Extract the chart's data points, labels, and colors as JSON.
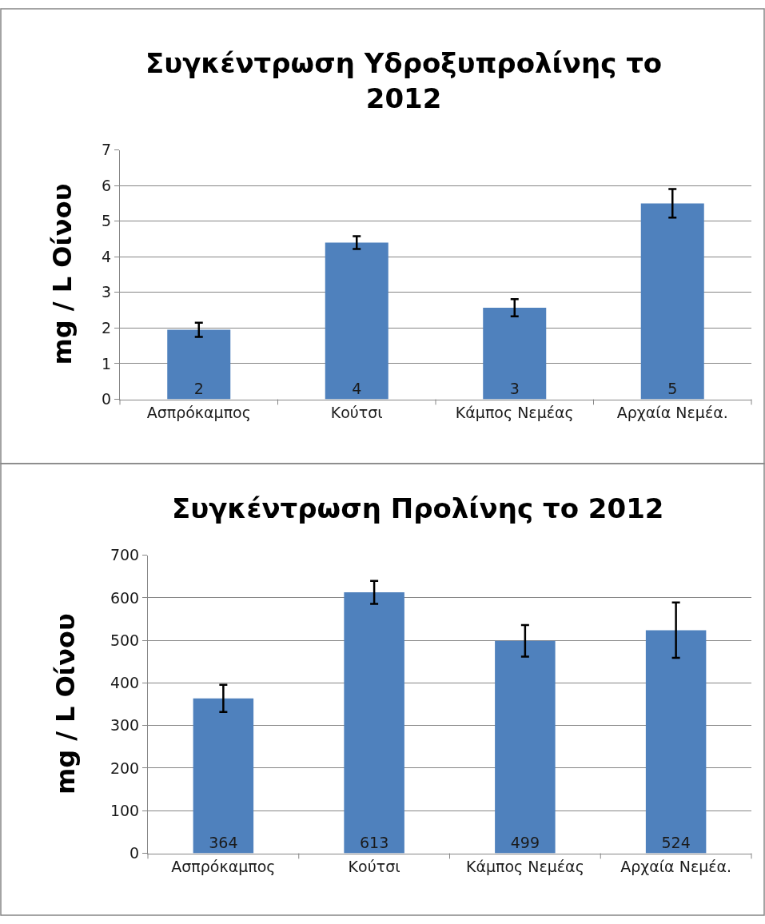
{
  "chart_data": [
    {
      "type": "bar",
      "title": "Συγκέντρωση Υδροξυπρολίνης το 2012",
      "ylabel": "mg / L Οίνου",
      "categories": [
        "Ασπρόκαμπος",
        "Κούτσι",
        "Κάμπος Νεμέας",
        "Αρχαία Νεμέα."
      ],
      "values": [
        1.95,
        4.4,
        2.57,
        5.5
      ],
      "errors": [
        0.2,
        0.18,
        0.24,
        0.4
      ],
      "value_labels": [
        "2",
        "4",
        "3",
        "5"
      ],
      "color": "#4f81bd",
      "ylim": [
        0,
        7
      ],
      "yticks": [
        0,
        1,
        2,
        3,
        4,
        5,
        6,
        7
      ],
      "grid": "y"
    },
    {
      "type": "bar",
      "title": "Συγκέντρωση Προλίνης το 2012",
      "ylabel": "mg / L Οίνου",
      "categories": [
        "Ασπρόκαμπος",
        "Κούτσι",
        "Κάμπος Νεμέας",
        "Αρχαία Νεμέα."
      ],
      "values": [
        364,
        613,
        499,
        524
      ],
      "errors": [
        32,
        27,
        37,
        65
      ],
      "data_labels": true,
      "color": "#4f81bd",
      "ylim": [
        0,
        700
      ],
      "yticks": [
        0,
        100,
        200,
        300,
        400,
        500,
        600,
        700
      ],
      "grid": "y"
    }
  ]
}
